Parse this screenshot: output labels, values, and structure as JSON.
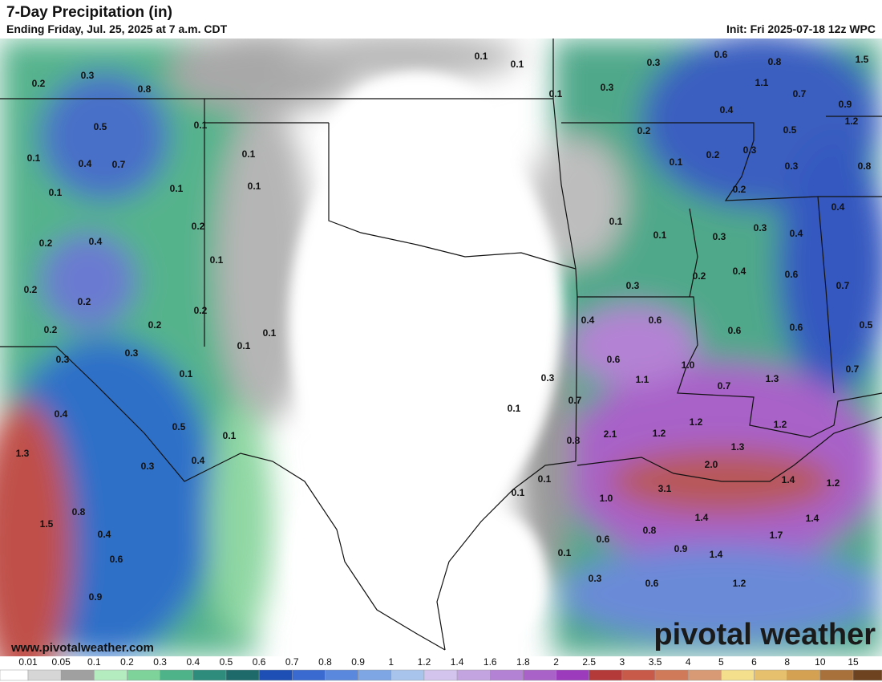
{
  "header": {
    "title": "7-Day Precipitation (in)",
    "subtitle": "Ending Friday, Jul. 25, 2025 at 7 a.m. CDT",
    "init": "Init: Fri 2025-07-18 12z WPC"
  },
  "map_labels": [
    "0.1",
    "0.1",
    "0.3",
    "0.6",
    "0.8",
    "1.5",
    "0.2",
    "0.3",
    "0.8",
    "0.3",
    "0.1",
    "1.1",
    "0.7",
    "0.9",
    "0.5",
    "0.1",
    "0.4",
    "1.2",
    "0.2",
    "0.5",
    "0.1",
    "0.4",
    "0.7",
    "0.1",
    "0.3",
    "0.2",
    "0.1",
    "0.3",
    "0.8",
    "0.1",
    "0.1",
    "0.1",
    "0.2",
    "0.4",
    "0.2",
    "0.3",
    "0.1",
    "0.4",
    "0.2",
    "0.4",
    "0.1",
    "0.3",
    "0.1",
    "0.4",
    "0.6",
    "0.2",
    "0.3",
    "0.2",
    "0.2",
    "0.7",
    "0.2",
    "0.4",
    "0.6",
    "0.2",
    "0.6",
    "0.6",
    "0.5",
    "0.2",
    "0.1",
    "0.1",
    "0.3",
    "0.3",
    "0.6",
    "1.0",
    "0.7",
    "0.1",
    "0.3",
    "1.1",
    "1.3",
    "0.7",
    "0.7",
    "0.1",
    "0.4",
    "0.5",
    "1.2",
    "1.2",
    "2.1",
    "1.2",
    "0.1",
    "0.8",
    "1.3",
    "1.3",
    "0.4",
    "0.3",
    "2.0",
    "0.1",
    "1.4",
    "1.2",
    "0.1",
    "3.1",
    "1.0",
    "0.8",
    "1.5",
    "1.4",
    "1.4",
    "0.4",
    "0.8",
    "1.7",
    "0.6",
    "0.9",
    "1.4",
    "0.1",
    "0.6",
    "0.3",
    "0.6",
    "1.2",
    "0.9"
  ],
  "watermark": "www.pivotalweather.com",
  "logo": "pivotal weather",
  "colorbar": {
    "labels": [
      "0.01",
      "0.05",
      "0.1",
      "0.2",
      "0.3",
      "0.4",
      "0.5",
      "0.6",
      "0.7",
      "0.8",
      "0.9",
      "1",
      "1.2",
      "1.4",
      "1.6",
      "1.8",
      "2",
      "2.5",
      "3",
      "3.5",
      "4",
      "5",
      "6",
      "8",
      "10",
      "15"
    ],
    "colors": [
      "#ffffff",
      "#d6d6d6",
      "#a0a0a0",
      "#b4ecc0",
      "#7ed39a",
      "#4fb38a",
      "#2e8c7c",
      "#1e6a6a",
      "#1e4fb4",
      "#3a6ad0",
      "#5a88dc",
      "#7ea6e4",
      "#a8c4ec",
      "#d2c4ec",
      "#c4a4e0",
      "#b482d4",
      "#a862c8",
      "#9c3cbc",
      "#b43a3a",
      "#c85a4a",
      "#d07a5a",
      "#d89a74",
      "#f4e08c",
      "#e6c06c",
      "#d4a052",
      "#a8703a",
      "#6e4420"
    ]
  }
}
